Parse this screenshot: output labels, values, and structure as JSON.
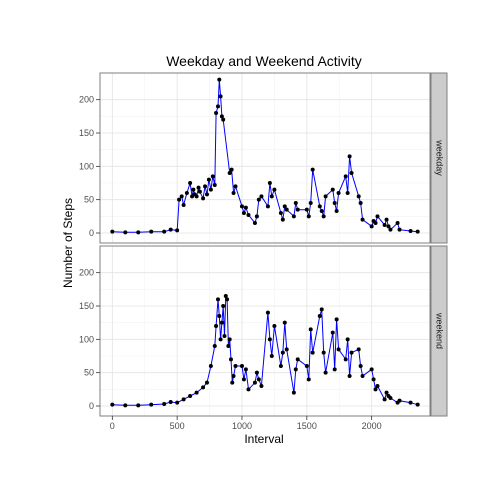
{
  "chart_data": {
    "type": "line",
    "title": "Weekday and Weekend Activity",
    "xlabel": "Interval",
    "ylabel": "Number of Steps",
    "xlim": [
      -95,
      2450
    ],
    "ylim": [
      -15,
      240
    ],
    "x_ticks": [
      0,
      500,
      1000,
      1500,
      2000
    ],
    "y_ticks": [
      0,
      50,
      100,
      150,
      200
    ],
    "grid": true,
    "line_color": "#0000ff",
    "point_color": "#000000",
    "panels": [
      {
        "name": "weekday",
        "x": [
          0,
          100,
          200,
          300,
          400,
          450,
          500,
          515,
          535,
          550,
          575,
          600,
          615,
          625,
          635,
          650,
          665,
          675,
          700,
          715,
          730,
          745,
          760,
          775,
          790,
          800,
          815,
          825,
          835,
          845,
          855,
          905,
          920,
          935,
          950,
          1000,
          1015,
          1030,
          1050,
          1100,
          1115,
          1130,
          1150,
          1200,
          1215,
          1230,
          1250,
          1300,
          1315,
          1330,
          1345,
          1400,
          1415,
          1430,
          1500,
          1515,
          1530,
          1545,
          1600,
          1615,
          1630,
          1645,
          1700,
          1715,
          1730,
          1745,
          1800,
          1815,
          1830,
          1845,
          1900,
          1915,
          1930,
          2000,
          2015,
          2030,
          2045,
          2100,
          2115,
          2130,
          2145,
          2200,
          2215,
          2300,
          2355
        ],
        "y": [
          2,
          1,
          1,
          2,
          2,
          5,
          4,
          50,
          55,
          42,
          60,
          75,
          55,
          65,
          58,
          55,
          68,
          62,
          52,
          70,
          58,
          80,
          65,
          85,
          72,
          180,
          190,
          230,
          205,
          175,
          170,
          90,
          95,
          60,
          70,
          40,
          30,
          38,
          27,
          15,
          25,
          50,
          55,
          40,
          75,
          55,
          65,
          30,
          20,
          40,
          35,
          25,
          45,
          35,
          35,
          25,
          45,
          95,
          40,
          33,
          25,
          55,
          65,
          45,
          33,
          60,
          85,
          60,
          115,
          90,
          55,
          45,
          20,
          10,
          18,
          15,
          25,
          12,
          20,
          10,
          5,
          15,
          5,
          3,
          2
        ]
      },
      {
        "name": "weekend",
        "x": [
          0,
          100,
          200,
          300,
          400,
          450,
          500,
          550,
          600,
          650,
          700,
          730,
          760,
          790,
          800,
          815,
          825,
          835,
          845,
          855,
          865,
          875,
          885,
          895,
          905,
          915,
          925,
          935,
          950,
          1000,
          1015,
          1030,
          1050,
          1100,
          1115,
          1130,
          1150,
          1200,
          1215,
          1230,
          1250,
          1300,
          1315,
          1330,
          1345,
          1400,
          1415,
          1430,
          1500,
          1515,
          1530,
          1545,
          1600,
          1615,
          1630,
          1645,
          1700,
          1715,
          1730,
          1745,
          1800,
          1815,
          1830,
          1845,
          1900,
          1915,
          1930,
          2000,
          2015,
          2030,
          2045,
          2100,
          2115,
          2130,
          2145,
          2200,
          2215,
          2300,
          2355
        ],
        "y": [
          2,
          1,
          1,
          2,
          3,
          6,
          5,
          10,
          15,
          20,
          28,
          35,
          60,
          90,
          120,
          160,
          135,
          100,
          125,
          150,
          105,
          165,
          160,
          90,
          100,
          70,
          35,
          45,
          60,
          60,
          40,
          55,
          25,
          35,
          50,
          40,
          30,
          140,
          100,
          75,
          120,
          60,
          80,
          125,
          85,
          20,
          55,
          70,
          60,
          40,
          115,
          80,
          135,
          145,
          80,
          50,
          110,
          55,
          130,
          85,
          70,
          100,
          45,
          80,
          85,
          60,
          45,
          55,
          40,
          25,
          30,
          10,
          20,
          15,
          12,
          5,
          8,
          5,
          2
        ]
      }
    ]
  }
}
